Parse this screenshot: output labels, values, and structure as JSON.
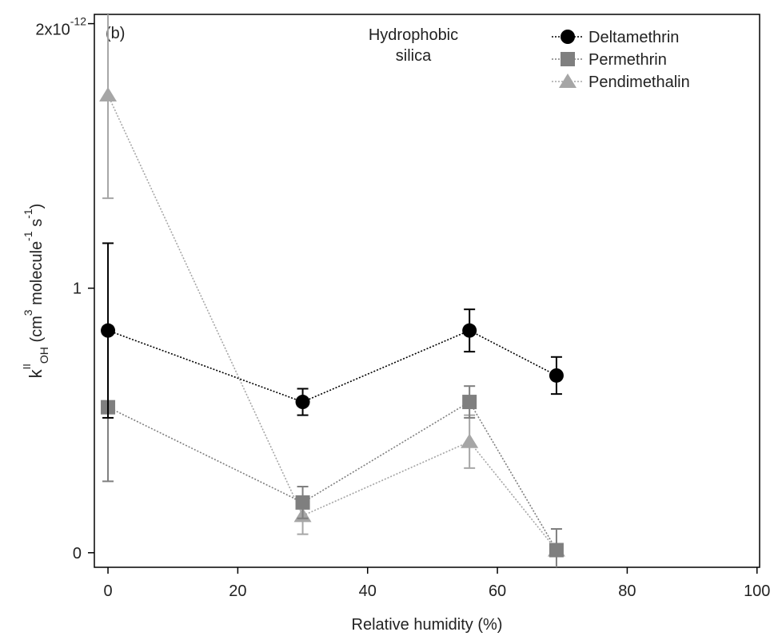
{
  "chart_data": {
    "type": "line",
    "annotation": "(b)",
    "annotation_lines": [
      "Hydrophobic",
      "silica"
    ],
    "xlabel": "Relative humidity (%)",
    "ylabel_parts": [
      "k",
      "II",
      "OH",
      " (cm",
      "3",
      " molecule",
      "-1",
      " s",
      "-1",
      ")"
    ],
    "x": [
      0,
      30,
      55.7,
      69.1
    ],
    "xlim": [
      -2.1,
      100.4
    ],
    "xticks": [
      0,
      20,
      40,
      60,
      80,
      100
    ],
    "ylim": [
      -0.055,
      2.035
    ],
    "yticks": [
      0,
      1,
      {
        "value": 2,
        "label": "2x10",
        "exponent": "-12"
      }
    ],
    "legend": "upper right",
    "series": [
      {
        "name": "Deltamethrin",
        "color": "#000000",
        "marker": "circle",
        "values": [
          0.84,
          0.57,
          0.84,
          0.67
        ],
        "errors": [
          0.33,
          0.05,
          0.08,
          0.07
        ]
      },
      {
        "name": "Permethrin",
        "color": "#7f7f7f",
        "marker": "square",
        "values": [
          0.55,
          0.19,
          0.57,
          0.01
        ],
        "errors": [
          0.28,
          0.06,
          0.06,
          0.08
        ]
      },
      {
        "name": "Pendimethalin",
        "color": "#a6a6a6",
        "marker": "triangle",
        "values": [
          1.73,
          0.14,
          0.42,
          0.01
        ],
        "errors": [
          0.39,
          0.07,
          0.1,
          0.01
        ]
      }
    ]
  }
}
